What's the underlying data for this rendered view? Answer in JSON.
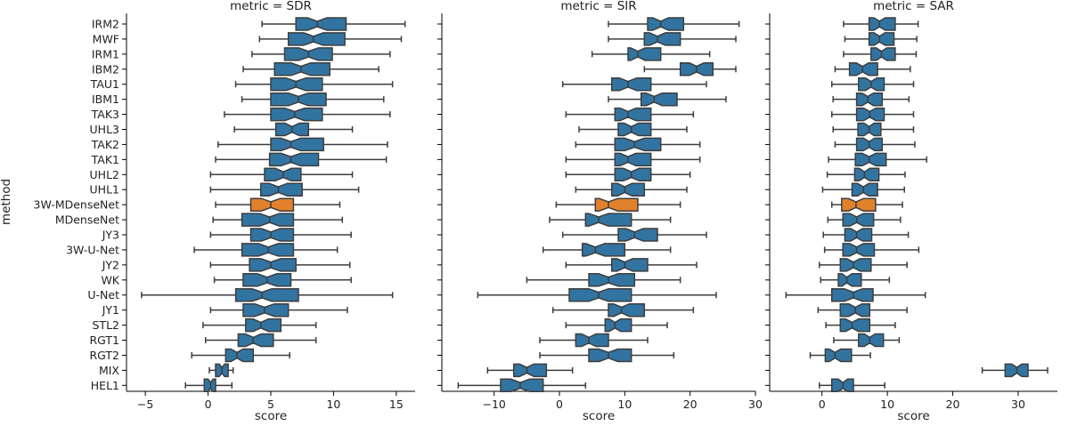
{
  "chart_data": {
    "type": "boxplot",
    "notched": true,
    "y_axis_label": "method",
    "x_axis_label": "score",
    "methods": [
      "IRM2",
      "MWF",
      "IRM1",
      "IBM2",
      "TAU1",
      "IBM1",
      "TAK3",
      "UHL3",
      "TAK2",
      "TAK1",
      "UHL2",
      "UHL1",
      "3W-MDenseNet",
      "MDenseNet",
      "JY3",
      "3W-U-Net",
      "JY2",
      "WK",
      "U-Net",
      "JY1",
      "STL2",
      "RGT1",
      "RGT2",
      "MIX",
      "HEL1"
    ],
    "highlight_method": "3W-MDenseNet",
    "colors": {
      "default": "#3274a1",
      "highlight": "#e1812c",
      "whisker": "#3d3d3d"
    },
    "facets": [
      {
        "title": "metric = SDR",
        "xlim": [
          -6.5,
          16.5
        ],
        "xticks": [
          -5,
          0,
          5,
          10,
          15
        ],
        "boxes": [
          {
            "q1": 7.0,
            "median": 8.7,
            "q3": 11.0,
            "wlo": 4.3,
            "whi": 15.7
          },
          {
            "q1": 6.4,
            "median": 8.4,
            "q3": 10.9,
            "wlo": 4.1,
            "whi": 15.4
          },
          {
            "q1": 6.1,
            "median": 8.0,
            "q3": 9.9,
            "wlo": 3.5,
            "whi": 14.5
          },
          {
            "q1": 5.3,
            "median": 7.4,
            "q3": 9.7,
            "wlo": 2.8,
            "whi": 13.6
          },
          {
            "q1": 5.0,
            "median": 7.0,
            "q3": 9.1,
            "wlo": 2.2,
            "whi": 14.7
          },
          {
            "q1": 5.0,
            "median": 7.2,
            "q3": 9.4,
            "wlo": 2.7,
            "whi": 14.0
          },
          {
            "q1": 5.0,
            "median": 6.9,
            "q3": 9.1,
            "wlo": 1.3,
            "whi": 14.5
          },
          {
            "q1": 5.4,
            "median": 6.7,
            "q3": 8.0,
            "wlo": 2.1,
            "whi": 11.5
          },
          {
            "q1": 5.0,
            "median": 6.6,
            "q3": 9.2,
            "wlo": 0.8,
            "whi": 14.3
          },
          {
            "q1": 4.9,
            "median": 6.6,
            "q3": 8.8,
            "wlo": 0.6,
            "whi": 14.2
          },
          {
            "q1": 4.5,
            "median": 6.0,
            "q3": 7.4,
            "wlo": 0.2,
            "whi": 11.5
          },
          {
            "q1": 4.2,
            "median": 5.6,
            "q3": 7.5,
            "wlo": 0.2,
            "whi": 12.0
          },
          {
            "q1": 3.4,
            "median": 5.0,
            "q3": 6.8,
            "wlo": 0.6,
            "whi": 10.5
          },
          {
            "q1": 2.7,
            "median": 4.9,
            "q3": 6.8,
            "wlo": 0.4,
            "whi": 10.7
          },
          {
            "q1": 3.4,
            "median": 5.0,
            "q3": 6.8,
            "wlo": 0.2,
            "whi": 11.4
          },
          {
            "q1": 2.7,
            "median": 4.8,
            "q3": 6.8,
            "wlo": -1.1,
            "whi": 10.3
          },
          {
            "q1": 3.3,
            "median": 5.0,
            "q3": 7.0,
            "wlo": 0.2,
            "whi": 11.3
          },
          {
            "q1": 2.8,
            "median": 4.7,
            "q3": 6.6,
            "wlo": 0.5,
            "whi": 11.4
          },
          {
            "q1": 2.2,
            "median": 4.3,
            "q3": 7.2,
            "wlo": -5.3,
            "whi": 14.7
          },
          {
            "q1": 2.8,
            "median": 4.5,
            "q3": 6.4,
            "wlo": 0.2,
            "whi": 11.1
          },
          {
            "q1": 3.0,
            "median": 4.2,
            "q3": 5.8,
            "wlo": -0.4,
            "whi": 8.6
          },
          {
            "q1": 2.4,
            "median": 3.6,
            "q3": 5.2,
            "wlo": -0.2,
            "whi": 8.6
          },
          {
            "q1": 1.4,
            "median": 2.3,
            "q3": 3.6,
            "wlo": -1.3,
            "whi": 6.5
          },
          {
            "q1": 0.6,
            "median": 1.1,
            "q3": 1.6,
            "wlo": 0.1,
            "whi": 2.0
          },
          {
            "q1": -0.3,
            "median": 0.2,
            "q3": 0.6,
            "wlo": -1.8,
            "whi": 1.9
          }
        ]
      },
      {
        "title": "metric = SIR",
        "xlim": [
          -18,
          30
        ],
        "xticks": [
          -10,
          0,
          10,
          20,
          30
        ],
        "boxes": [
          {
            "q1": 13.5,
            "median": 15.5,
            "q3": 19.0,
            "wlo": 7.5,
            "whi": 27.5
          },
          {
            "q1": 13.0,
            "median": 15.0,
            "q3": 18.5,
            "wlo": 7.5,
            "whi": 27.0
          },
          {
            "q1": 10.5,
            "median": 12.0,
            "q3": 15.5,
            "wlo": 5.0,
            "whi": 23.0
          },
          {
            "q1": 18.5,
            "median": 21.0,
            "q3": 23.5,
            "wlo": 13.0,
            "whi": 27.0
          },
          {
            "q1": 8.0,
            "median": 10.5,
            "q3": 14.0,
            "wlo": 0.5,
            "whi": 22.5
          },
          {
            "q1": 12.5,
            "median": 14.5,
            "q3": 18.0,
            "wlo": 7.5,
            "whi": 25.5
          },
          {
            "q1": 8.5,
            "median": 10.5,
            "q3": 14.0,
            "wlo": 1.0,
            "whi": 20.5
          },
          {
            "q1": 9.0,
            "median": 11.0,
            "q3": 14.0,
            "wlo": 3.0,
            "whi": 19.5
          },
          {
            "q1": 8.5,
            "median": 11.5,
            "q3": 15.5,
            "wlo": 2.5,
            "whi": 21.5
          },
          {
            "q1": 8.5,
            "median": 10.5,
            "q3": 14.0,
            "wlo": 1.0,
            "whi": 21.5
          },
          {
            "q1": 8.5,
            "median": 11.0,
            "q3": 14.0,
            "wlo": 1.0,
            "whi": 20.0
          },
          {
            "q1": 8.0,
            "median": 10.0,
            "q3": 13.0,
            "wlo": 2.5,
            "whi": 19.5
          },
          {
            "q1": 5.5,
            "median": 7.5,
            "q3": 12.0,
            "wlo": -0.5,
            "whi": 18.5
          },
          {
            "q1": 4.0,
            "median": 6.0,
            "q3": 11.0,
            "wlo": -1.5,
            "whi": 17.0
          },
          {
            "q1": 9.0,
            "median": 11.5,
            "q3": 15.0,
            "wlo": 0.5,
            "whi": 22.5
          },
          {
            "q1": 3.5,
            "median": 5.5,
            "q3": 10.0,
            "wlo": -2.5,
            "whi": 17.0
          },
          {
            "q1": 8.0,
            "median": 10.0,
            "q3": 13.5,
            "wlo": 1.0,
            "whi": 21.0
          },
          {
            "q1": 4.5,
            "median": 7.5,
            "q3": 11.5,
            "wlo": -5.0,
            "whi": 18.5
          },
          {
            "q1": 1.5,
            "median": 6.0,
            "q3": 11.0,
            "wlo": -12.5,
            "whi": 24.0
          },
          {
            "q1": 7.5,
            "median": 9.5,
            "q3": 13.0,
            "wlo": -1.0,
            "whi": 20.5
          },
          {
            "q1": 7.0,
            "median": 8.5,
            "q3": 11.0,
            "wlo": 1.0,
            "whi": 16.5
          },
          {
            "q1": 2.5,
            "median": 4.5,
            "q3": 7.5,
            "wlo": -3.0,
            "whi": 13.5
          },
          {
            "q1": 4.5,
            "median": 7.5,
            "q3": 11.0,
            "wlo": -3.0,
            "whi": 17.5
          },
          {
            "q1": -7.0,
            "median": -5.0,
            "q3": -2.0,
            "wlo": -11.0,
            "whi": 2.0
          },
          {
            "q1": -9.0,
            "median": -6.0,
            "q3": -2.5,
            "wlo": -15.5,
            "whi": 4.0
          }
        ]
      },
      {
        "title": "metric = SAR",
        "xlim": [
          -8,
          36
        ],
        "xticks": [
          0,
          10,
          20,
          30
        ],
        "boxes": [
          {
            "q1": 7.2,
            "median": 8.8,
            "q3": 11.2,
            "wlo": 3.3,
            "whi": 14.7
          },
          {
            "q1": 7.2,
            "median": 8.8,
            "q3": 11.0,
            "wlo": 3.5,
            "whi": 14.5
          },
          {
            "q1": 7.5,
            "median": 9.1,
            "q3": 11.2,
            "wlo": 3.3,
            "whi": 14.4
          },
          {
            "q1": 4.2,
            "median": 6.2,
            "q3": 8.5,
            "wlo": 2.0,
            "whi": 13.5
          },
          {
            "q1": 5.6,
            "median": 7.5,
            "q3": 9.5,
            "wlo": 1.5,
            "whi": 14.0
          },
          {
            "q1": 5.3,
            "median": 7.0,
            "q3": 9.2,
            "wlo": 1.7,
            "whi": 13.3
          },
          {
            "q1": 5.3,
            "median": 7.3,
            "q3": 9.5,
            "wlo": 1.5,
            "whi": 14.0
          },
          {
            "q1": 5.5,
            "median": 7.2,
            "q3": 9.0,
            "wlo": 1.7,
            "whi": 14.0
          },
          {
            "q1": 5.3,
            "median": 7.2,
            "q3": 9.2,
            "wlo": 2.0,
            "whi": 14.2
          },
          {
            "q1": 5.1,
            "median": 7.2,
            "q3": 9.8,
            "wlo": 1.0,
            "whi": 16.0
          },
          {
            "q1": 5.0,
            "median": 6.5,
            "q3": 8.7,
            "wlo": 0.8,
            "whi": 12.7
          },
          {
            "q1": 4.6,
            "median": 6.3,
            "q3": 8.5,
            "wlo": 0.1,
            "whi": 12.6
          },
          {
            "q1": 3.0,
            "median": 5.2,
            "q3": 8.2,
            "wlo": 1.5,
            "whi": 12.3
          },
          {
            "q1": 3.2,
            "median": 5.3,
            "q3": 7.9,
            "wlo": 0.9,
            "whi": 12.0
          },
          {
            "q1": 3.5,
            "median": 5.3,
            "q3": 7.6,
            "wlo": 0.2,
            "whi": 13.2
          },
          {
            "q1": 3.2,
            "median": 5.3,
            "q3": 8.0,
            "wlo": 0.4,
            "whi": 14.8
          },
          {
            "q1": 2.8,
            "median": 4.8,
            "q3": 7.5,
            "wlo": -0.4,
            "whi": 13.0
          },
          {
            "q1": 2.5,
            "median": 3.8,
            "q3": 6.0,
            "wlo": -0.2,
            "whi": 10.3
          },
          {
            "q1": 1.5,
            "median": 4.8,
            "q3": 7.8,
            "wlo": -5.5,
            "whi": 15.8
          },
          {
            "q1": 2.8,
            "median": 5.1,
            "q3": 7.3,
            "wlo": -0.6,
            "whi": 13.0
          },
          {
            "q1": 2.8,
            "median": 4.6,
            "q3": 7.3,
            "wlo": 0.6,
            "whi": 11.2
          },
          {
            "q1": 5.6,
            "median": 7.3,
            "q3": 9.4,
            "wlo": 1.8,
            "whi": 11.8
          },
          {
            "q1": 0.5,
            "median": 2.0,
            "q3": 4.5,
            "wlo": -1.8,
            "whi": 7.4
          },
          {
            "q1": 28.0,
            "median": 29.8,
            "q3": 31.5,
            "wlo": 24.5,
            "whi": 34.5
          },
          {
            "q1": 1.5,
            "median": 3.2,
            "q3": 4.8,
            "wlo": -0.4,
            "whi": 9.6
          }
        ]
      }
    ]
  }
}
